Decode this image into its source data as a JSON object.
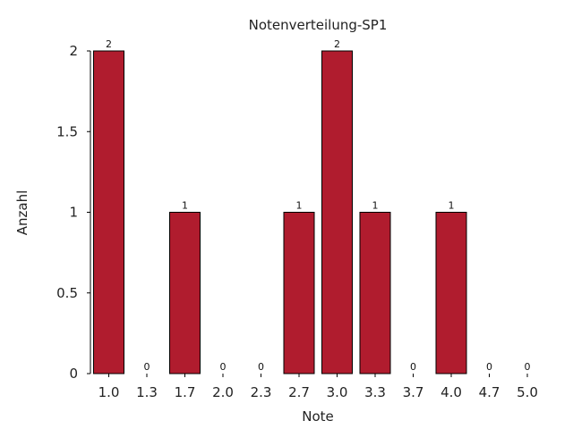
{
  "chart_data": {
    "type": "bar",
    "title": "Notenverteilung-SP1",
    "xlabel": "Note",
    "ylabel": "Anzahl",
    "categories": [
      "1.0",
      "1.3",
      "1.7",
      "2.0",
      "2.3",
      "2.7",
      "3.0",
      "3.3",
      "3.7",
      "4.0",
      "4.7",
      "5.0"
    ],
    "values": [
      2,
      0,
      1,
      0,
      0,
      1,
      2,
      1,
      0,
      1,
      0,
      0
    ],
    "data_labels": [
      "2",
      "0",
      "1",
      "0",
      "0",
      "1",
      "2",
      "1",
      "0",
      "1",
      "0",
      "0"
    ],
    "ylim": [
      0,
      2
    ],
    "yticks": [
      0,
      0.5,
      1,
      1.5,
      2
    ],
    "ytick_labels": [
      "0",
      "0.5",
      "1",
      "1.5",
      "2"
    ],
    "bar_color": "#b01c2e",
    "grid": false,
    "legend": false
  }
}
